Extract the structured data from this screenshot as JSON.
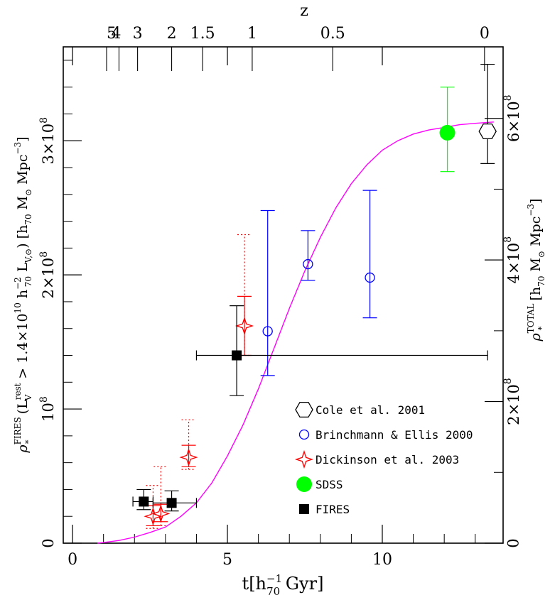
{
  "chart_data": {
    "type": "scatter",
    "x_axis": {
      "label": "t[h",
      "label_sub": "70",
      "label_sup": "−1",
      "label_tail": " Gyr]",
      "range": [
        -0.3,
        13.9
      ],
      "ticks": [
        {
          "value": 0,
          "label": "0"
        },
        {
          "value": 5,
          "label": "5"
        },
        {
          "value": 10,
          "label": "10"
        }
      ],
      "minor_ticks": [
        1,
        2,
        3,
        4,
        6,
        7,
        8,
        9,
        11,
        12,
        13
      ]
    },
    "top_axis": {
      "label": "z",
      "ticks": [
        {
          "t": 1.1,
          "label": "5"
        },
        {
          "t": 1.5,
          "label": "4"
        },
        {
          "t": 2.1,
          "label": "3"
        },
        {
          "t": 3.2,
          "label": "2"
        },
        {
          "t": 4.2,
          "label": "1.5"
        },
        {
          "t": 5.8,
          "label": "1"
        },
        {
          "t": 8.4,
          "label": "0.5"
        },
        {
          "t": 13.3,
          "label": "0"
        }
      ]
    },
    "y_left": {
      "label_main": "ρ",
      "label_sup": "FIRES",
      "label_sub": "*",
      "label_rest": " (L",
      "label_rest_sup": "rest",
      "label_rest_sub": "V",
      "label_tail": " > 1.4×10",
      "label_tail_sup": "10",
      "label_h": " h",
      "label_h_sub": "70",
      "label_h_sup": "−2",
      "label_lsun": " L",
      "label_lsun_sub": "V,⊙",
      "label_end": ") [h",
      "label_end_sub": "70",
      "label_m": " M",
      "label_m_sub": "⊙",
      "label_mpc": " Mpc",
      "label_mpc_sup": "−3",
      "label_close": "]",
      "range": [
        0,
        370000000.0
      ],
      "ticks": [
        {
          "value": 0,
          "label": "0"
        },
        {
          "value": 100000000.0,
          "base": "10",
          "exp": "8"
        },
        {
          "value": 200000000.0,
          "base": "2×10",
          "exp": "8"
        },
        {
          "value": 300000000.0,
          "base": "3×10",
          "exp": "8"
        }
      ]
    },
    "y_right": {
      "label_main": "ρ",
      "label_sup": "TOTAL",
      "label_sub": "*",
      "label_rest": " [h",
      "label_rest_sub": "70",
      "label_m": " M",
      "label_m_sub": "⊙",
      "label_mpc": " Mpc",
      "label_mpc_sup": "−3",
      "label_close": "]",
      "scale_to_left": 0.5278,
      "ticks": [
        {
          "value": 0,
          "label": "0"
        },
        {
          "value": 200000000.0,
          "base": "2×10",
          "exp": "8"
        },
        {
          "value": 400000000.0,
          "base": "4×10",
          "exp": "8"
        },
        {
          "value": 600000000.0,
          "base": "6×10",
          "exp": "8"
        }
      ]
    },
    "curve": {
      "color": "#ff00ff",
      "points": [
        [
          0.8,
          0
        ],
        [
          1.0,
          500000.0
        ],
        [
          1.5,
          2000000.0
        ],
        [
          2.0,
          4500000.0
        ],
        [
          2.5,
          8000000.0
        ],
        [
          3.0,
          12000000.0
        ],
        [
          3.5,
          20000000.0
        ],
        [
          4.0,
          30000000.0
        ],
        [
          4.5,
          45000000.0
        ],
        [
          5.0,
          65000000.0
        ],
        [
          5.5,
          88000000.0
        ],
        [
          6.0,
          115000000.0
        ],
        [
          6.5,
          145000000.0
        ],
        [
          7.0,
          175000000.0
        ],
        [
          7.5,
          203000000.0
        ],
        [
          8.0,
          228000000.0
        ],
        [
          8.5,
          250000000.0
        ],
        [
          9.0,
          268000000.0
        ],
        [
          9.5,
          282000000.0
        ],
        [
          10.0,
          293000000.0
        ],
        [
          10.5,
          300000000.0
        ],
        [
          11.0,
          305000000.0
        ],
        [
          11.5,
          308000000.0
        ],
        [
          12.0,
          310000000.0
        ],
        [
          12.5,
          312000000.0
        ],
        [
          13.0,
          313000000.0
        ],
        [
          13.6,
          314000000.0
        ]
      ]
    },
    "series": [
      {
        "name": "Cole et al. 2001",
        "marker": "hexagon",
        "color": "#000000",
        "points": [
          {
            "x": 13.4,
            "y": 307000000.0,
            "ylo": 283000000.0,
            "yhi": 357000000.0
          }
        ]
      },
      {
        "name": "Brinchmann & Ellis 2000",
        "marker": "open-circle",
        "color": "#0000ff",
        "points": [
          {
            "x": 6.3,
            "y": 158000000.0,
            "ylo": 125000000.0,
            "yhi": 248000000.0
          },
          {
            "x": 7.6,
            "y": 208000000.0,
            "ylo": 196000000.0,
            "yhi": 233000000.0
          },
          {
            "x": 9.6,
            "y": 198000000.0,
            "ylo": 168000000.0,
            "yhi": 263000000.0
          }
        ]
      },
      {
        "name": "Dickinson et al. 2003",
        "marker": "star",
        "color": "#ff0000",
        "points": [
          {
            "x": 2.6,
            "y": 20000000.0,
            "ylo": 13000000.0,
            "yhi": 28000000.0,
            "dlo": 11000000.0,
            "dhi": 43000000.0
          },
          {
            "x": 2.85,
            "y": 22000000.0,
            "ylo": 16000000.0,
            "yhi": 29000000.0,
            "dlo": 13000000.0,
            "dhi": 57000000.0
          },
          {
            "x": 3.75,
            "y": 64000000.0,
            "ylo": 57000000.0,
            "yhi": 73000000.0,
            "dlo": 55000000.0,
            "dhi": 92000000.0
          },
          {
            "x": 5.55,
            "y": 162000000.0,
            "ylo": 140000000.0,
            "yhi": 184000000.0,
            "dlo": 140000000.0,
            "dhi": 230000000.0
          }
        ]
      },
      {
        "name": "SDSS",
        "marker": "filled-circle",
        "color": "#00ff00",
        "points": [
          {
            "x": 12.1,
            "y": 306000000.0,
            "ylo": 277000000.0,
            "yhi": 340000000.0
          }
        ]
      },
      {
        "name": "FIRES",
        "marker": "filled-square",
        "color": "#000000",
        "points": [
          {
            "x": 2.3,
            "y": 31000000.0,
            "ylo": 25000000.0,
            "yhi": 40000000.0,
            "xlo": 1.95,
            "xhi": 2.6
          },
          {
            "x": 3.2,
            "y": 30000000.0,
            "ylo": 24000000.0,
            "yhi": 39000000.0,
            "xlo": 2.6,
            "xhi": 4.0
          },
          {
            "x": 5.3,
            "y": 140000000.0,
            "ylo": 110000000.0,
            "yhi": 177000000.0,
            "xlo": 4.0,
            "xhi": 13.4
          }
        ]
      }
    ],
    "legend": [
      {
        "marker": "hexagon",
        "color": "#000000",
        "label": "Cole et al. 2001"
      },
      {
        "marker": "open-circle",
        "color": "#0000ff",
        "label": "Brinchmann & Ellis 2000"
      },
      {
        "marker": "star",
        "color": "#ff0000",
        "label": "Dickinson et al. 2003"
      },
      {
        "marker": "filled-circle",
        "color": "#00ff00",
        "label": "SDSS"
      },
      {
        "marker": "filled-square",
        "color": "#000000",
        "label": "FIRES"
      }
    ]
  }
}
